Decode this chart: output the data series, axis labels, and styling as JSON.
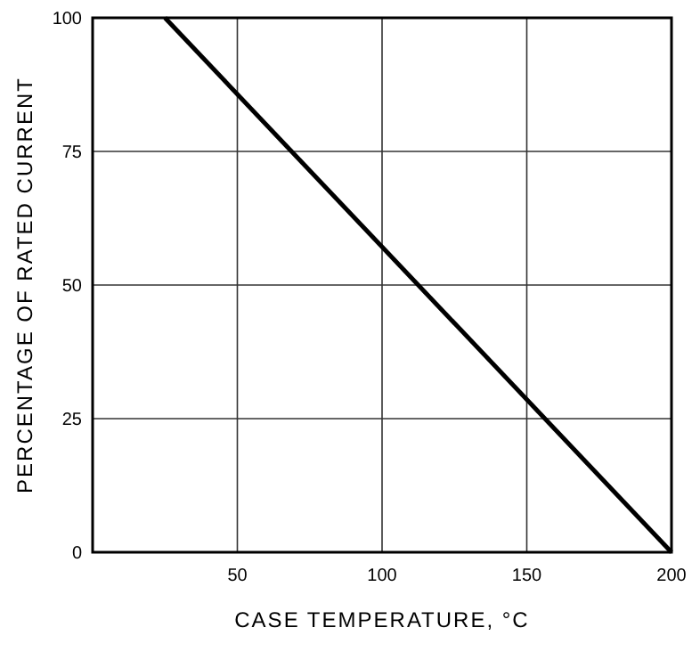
{
  "chart_data": {
    "type": "line",
    "xlabel": "CASE TEMPERATURE, °C",
    "ylabel": "PERCENTAGE OF RATED CURRENT",
    "series": [
      {
        "color": "#000000",
        "x": [
          25,
          200
        ],
        "values": [
          100,
          0
        ]
      }
    ],
    "xlim": [
      0,
      200
    ],
    "xticks": [
      50,
      100,
      150,
      200
    ],
    "ylim": [
      0,
      100
    ],
    "yticks": [
      0,
      25,
      50,
      75,
      100
    ],
    "grid": true,
    "marker": "none",
    "line_style": "solid"
  }
}
